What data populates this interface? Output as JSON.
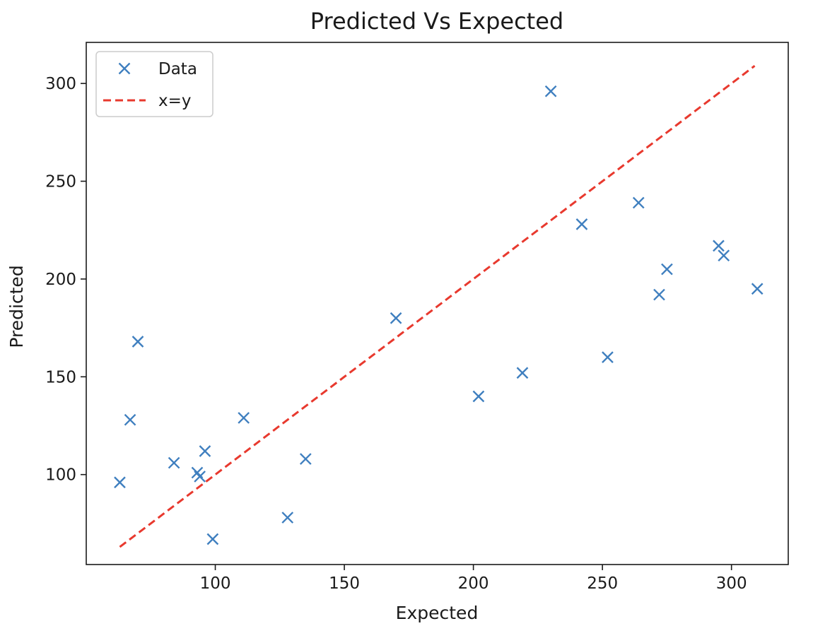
{
  "chart_data": {
    "type": "scatter",
    "title": "Predicted Vs Expected",
    "xlabel": "Expected",
    "ylabel": "Predicted",
    "xlim": [
      50,
      322
    ],
    "ylim": [
      54,
      321
    ],
    "xticks": [
      100,
      150,
      200,
      250,
      300
    ],
    "yticks": [
      100,
      150,
      200,
      250,
      300
    ],
    "grid": false,
    "legend_position": "top-left",
    "series": [
      {
        "name": "Data",
        "kind": "scatter",
        "marker": "x",
        "color": "#3f7fbf",
        "x": [
          63,
          67,
          70,
          84,
          93,
          94,
          96,
          99,
          111,
          128,
          135,
          170,
          202,
          219,
          230,
          242,
          252,
          264,
          272,
          275,
          295,
          297,
          310
        ],
        "y": [
          96,
          128,
          168,
          106,
          101,
          99,
          112,
          67,
          129,
          78,
          108,
          180,
          140,
          152,
          296,
          228,
          160,
          239,
          192,
          205,
          217,
          212,
          195
        ]
      },
      {
        "name": "x=y",
        "kind": "line",
        "style": "dashed",
        "color": "#e8392e",
        "x": [
          63,
          309
        ],
        "y": [
          63,
          309
        ]
      }
    ]
  }
}
